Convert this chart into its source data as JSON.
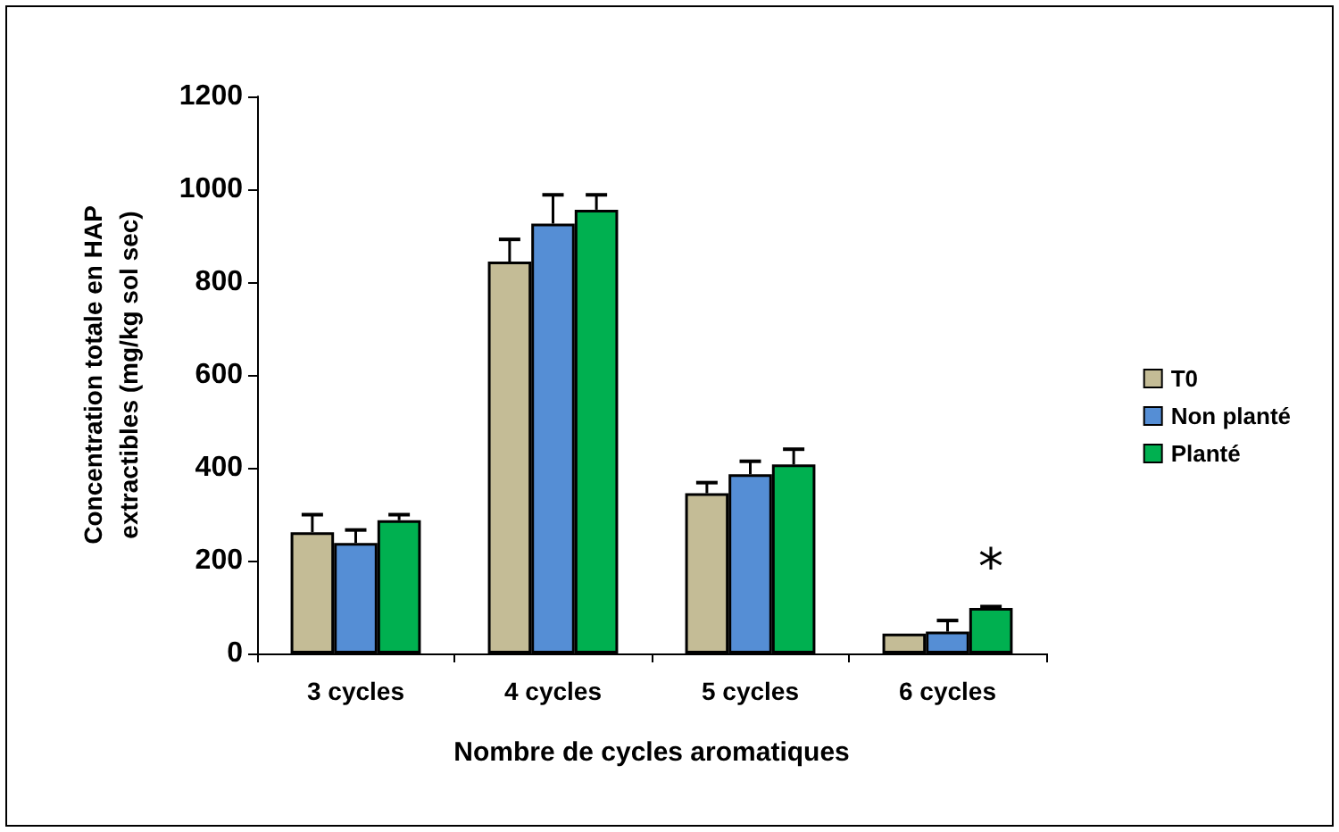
{
  "chart_data": {
    "type": "bar",
    "xlabel": "Nombre de cycles aromatiques",
    "ylabel": "Concentration totale en HAP extractibles (mg/kg sol sec)",
    "categories": [
      "3 cycles",
      "4 cycles",
      "5 cycles",
      "6 cycles"
    ],
    "series": [
      {
        "name": "T0",
        "color": "#c4bc96",
        "values": [
          261,
          844,
          345,
          43
        ],
        "errors": [
          38,
          48,
          23,
          null
        ]
      },
      {
        "name": "Non planté",
        "color": "#558ed5",
        "values": [
          238,
          926,
          386,
          47
        ],
        "errors": [
          28,
          62,
          28,
          24
        ]
      },
      {
        "name": "Planté",
        "color": "#00b050",
        "values": [
          287,
          956,
          407,
          98
        ],
        "errors": [
          12,
          32,
          33,
          3
        ]
      }
    ],
    "annotations": [
      "*"
    ],
    "ylim": [
      0,
      1200
    ],
    "yticks": [
      0,
      200,
      400,
      600,
      800,
      1000,
      1200
    ],
    "grid": false,
    "legend": "right"
  }
}
